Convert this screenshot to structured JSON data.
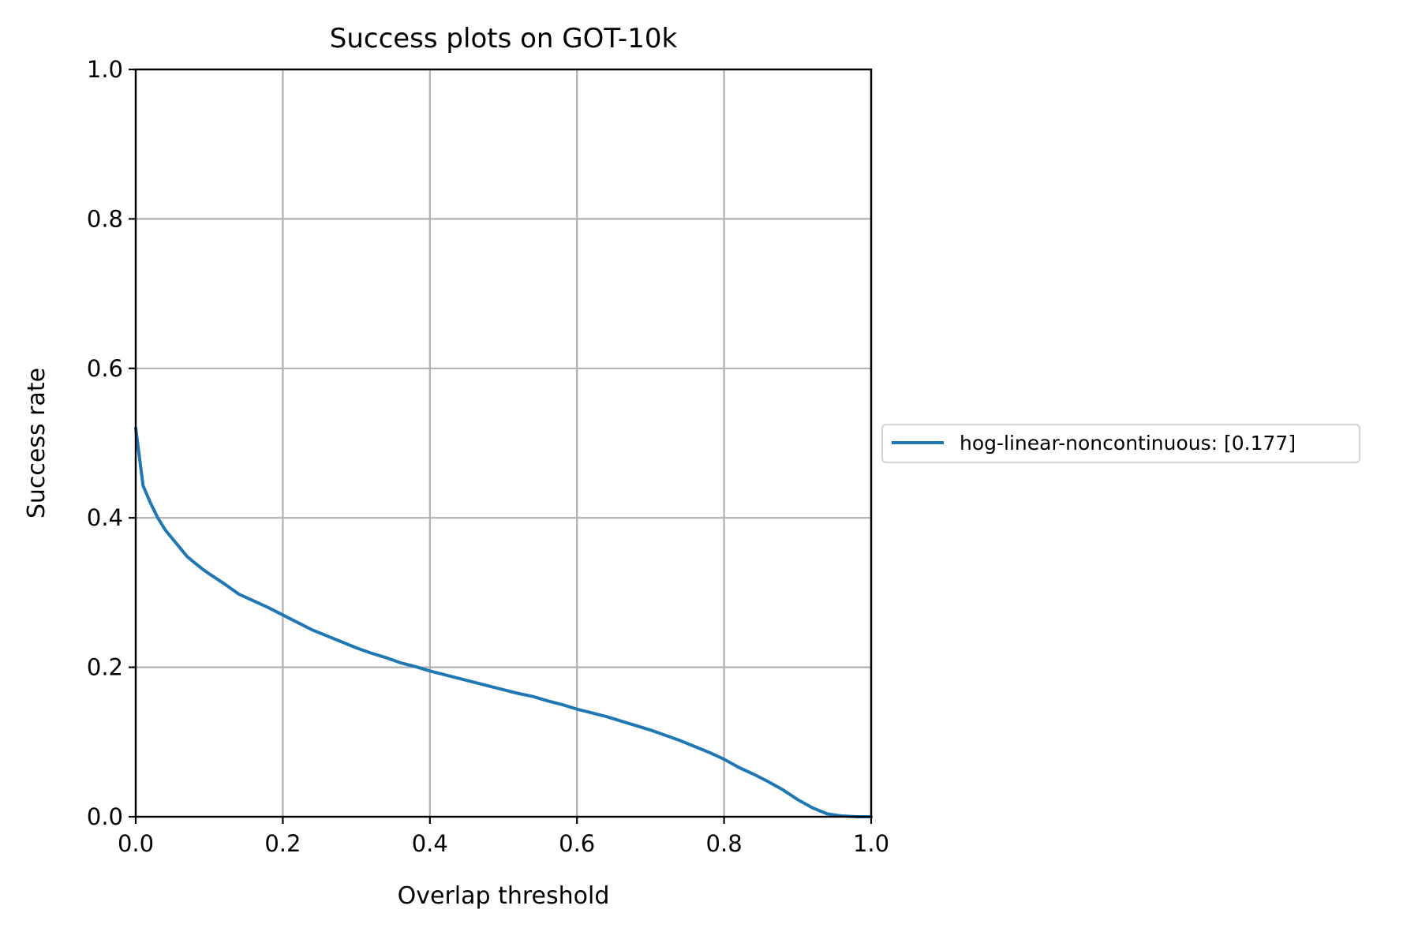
{
  "chart_data": {
    "type": "line",
    "title": "Success plots on GOT-10k",
    "xlabel": "Overlap threshold",
    "ylabel": "Success rate",
    "xlim": [
      0.0,
      1.0
    ],
    "ylim": [
      0.0,
      1.0
    ],
    "x_ticks": [
      "0.0",
      "0.2",
      "0.4",
      "0.6",
      "0.8",
      "1.0"
    ],
    "y_ticks": [
      "0.0",
      "0.2",
      "0.4",
      "0.6",
      "0.8",
      "1.0"
    ],
    "grid": true,
    "legend_position": "outside right, centered",
    "series": [
      {
        "name": "hog-linear-noncontinuous: [0.177]",
        "color": "#1f77b4",
        "x": [
          0.0,
          0.01,
          0.02,
          0.03,
          0.04,
          0.05,
          0.06,
          0.07,
          0.08,
          0.09,
          0.1,
          0.12,
          0.14,
          0.16,
          0.18,
          0.2,
          0.22,
          0.24,
          0.26,
          0.28,
          0.3,
          0.32,
          0.34,
          0.36,
          0.38,
          0.4,
          0.42,
          0.44,
          0.46,
          0.48,
          0.5,
          0.52,
          0.54,
          0.56,
          0.58,
          0.6,
          0.62,
          0.64,
          0.66,
          0.68,
          0.7,
          0.72,
          0.74,
          0.76,
          0.78,
          0.8,
          0.82,
          0.84,
          0.86,
          0.88,
          0.9,
          0.92,
          0.94,
          0.96,
          0.98,
          1.0
        ],
        "y": [
          0.52,
          0.443,
          0.42,
          0.4,
          0.384,
          0.372,
          0.36,
          0.348,
          0.34,
          0.332,
          0.325,
          0.312,
          0.298,
          0.289,
          0.28,
          0.27,
          0.26,
          0.25,
          0.242,
          0.234,
          0.226,
          0.219,
          0.213,
          0.206,
          0.201,
          0.195,
          0.19,
          0.185,
          0.18,
          0.175,
          0.17,
          0.165,
          0.161,
          0.155,
          0.15,
          0.144,
          0.139,
          0.134,
          0.128,
          0.122,
          0.116,
          0.109,
          0.102,
          0.094,
          0.086,
          0.077,
          0.066,
          0.057,
          0.047,
          0.036,
          0.023,
          0.012,
          0.004,
          0.001,
          0.0,
          0.0
        ]
      }
    ]
  }
}
